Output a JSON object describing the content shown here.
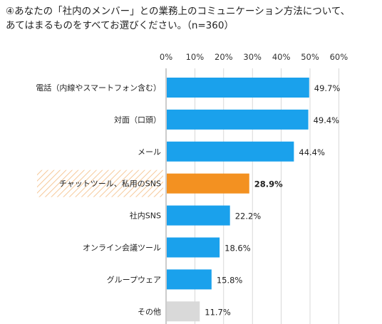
{
  "chart_data": {
    "type": "bar",
    "orientation": "horizontal",
    "title_line1": "④あなたの「社内のメンバー」との業務上のコミュニケーション方法について、",
    "title_line2": "あてはまるものをすべてお選びください。（n=360）",
    "xlim": [
      0,
      60
    ],
    "ticks": [
      "0%",
      "10%",
      "20%",
      "30%",
      "40%",
      "50%",
      "60%"
    ],
    "tick_values": [
      0,
      10,
      20,
      30,
      40,
      50,
      60
    ],
    "grid": true,
    "categories": [
      "電話（内線やスマートフォン含む）",
      "対面（口頭）",
      "メール",
      "チャットツール、私用のSNS",
      "社内SNS",
      "オンライン会議ツール",
      "グループウェア",
      "その他"
    ],
    "values": [
      49.7,
      49.4,
      44.4,
      28.9,
      22.2,
      18.6,
      15.8,
      11.7
    ],
    "labels": [
      "49.7%",
      "49.4%",
      "44.4%",
      "28.9%",
      "22.2%",
      "18.6%",
      "15.8%",
      "11.7%"
    ],
    "highlight_index": 3,
    "colors": {
      "bar": "#1aa1ec",
      "highlight": "#f39121",
      "other": "#d9d9d9",
      "grid": "#cfcfcf",
      "hatch": "#f6c99a"
    }
  }
}
